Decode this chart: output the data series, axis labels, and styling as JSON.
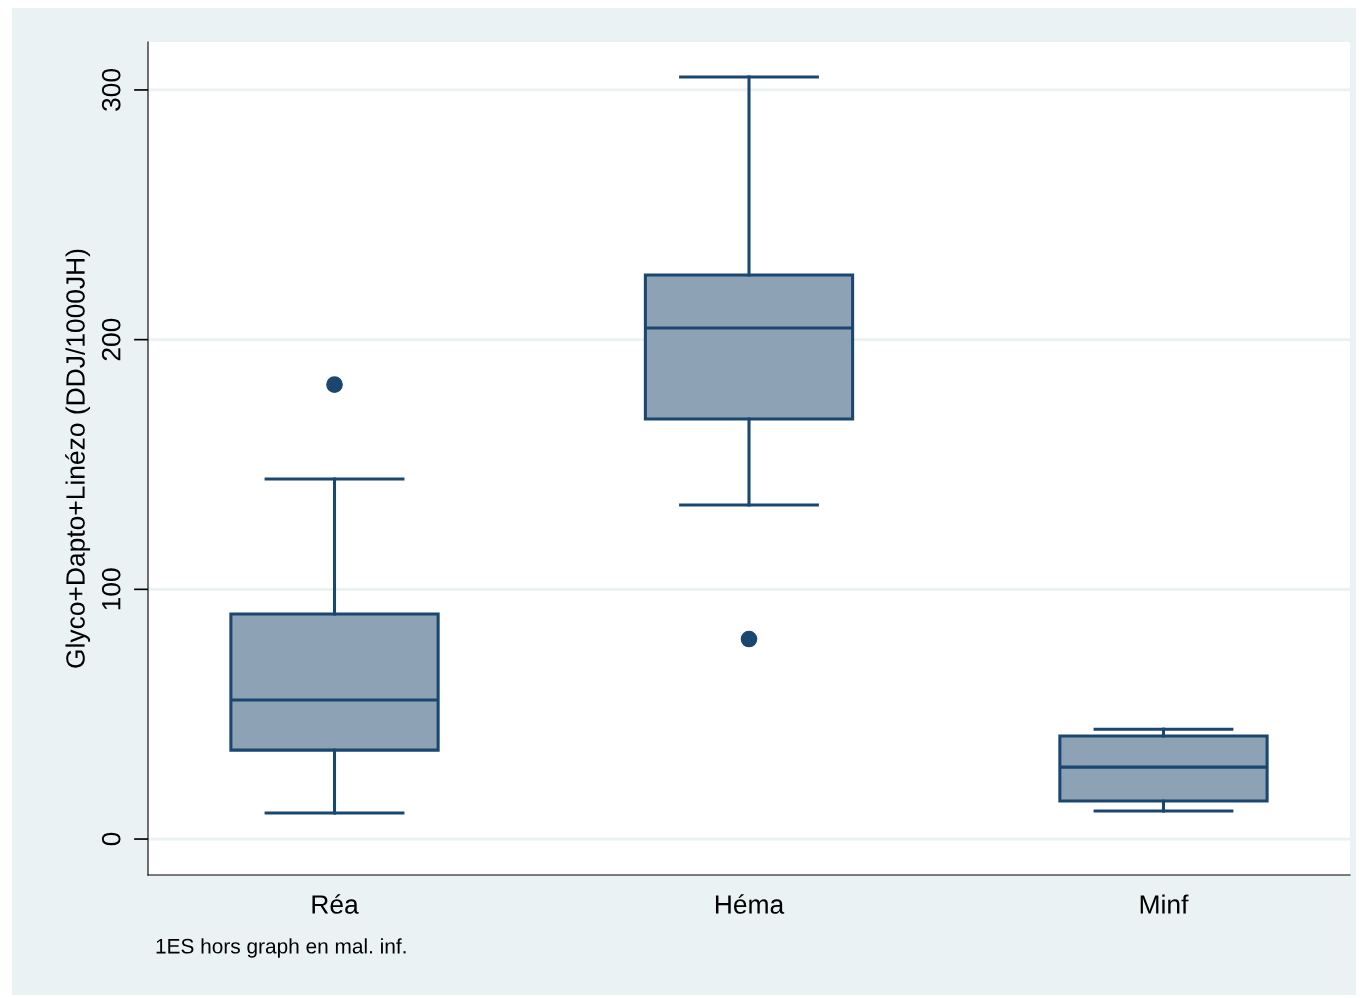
{
  "chart_data": {
    "type": "box",
    "ylabel": "Glyco+Dapto+Linézo (DDJ/1000JH)",
    "categories": [
      "Réa",
      "Héma",
      "Minf"
    ],
    "boxes": [
      {
        "low": 10.4,
        "q1": 35.6,
        "median": 55.7,
        "q3": 90.1,
        "high": 144.2,
        "outliers": [
          182
        ]
      },
      {
        "low": 133.8,
        "q1": 168.2,
        "median": 204.7,
        "q3": 225.9,
        "high": 305.2,
        "outliers": [
          80.1
        ]
      },
      {
        "low": 11.2,
        "q1": 15.2,
        "median": 28.8,
        "q3": 41.3,
        "high": 44
      }
    ],
    "color": "#8da3b5",
    "ylim": [
      -14.4,
      319.2
    ],
    "yticks": [
      0,
      100,
      200,
      300
    ],
    "grid": "y",
    "annotations": [
      "1ES hors graph en mal. inf."
    ]
  }
}
